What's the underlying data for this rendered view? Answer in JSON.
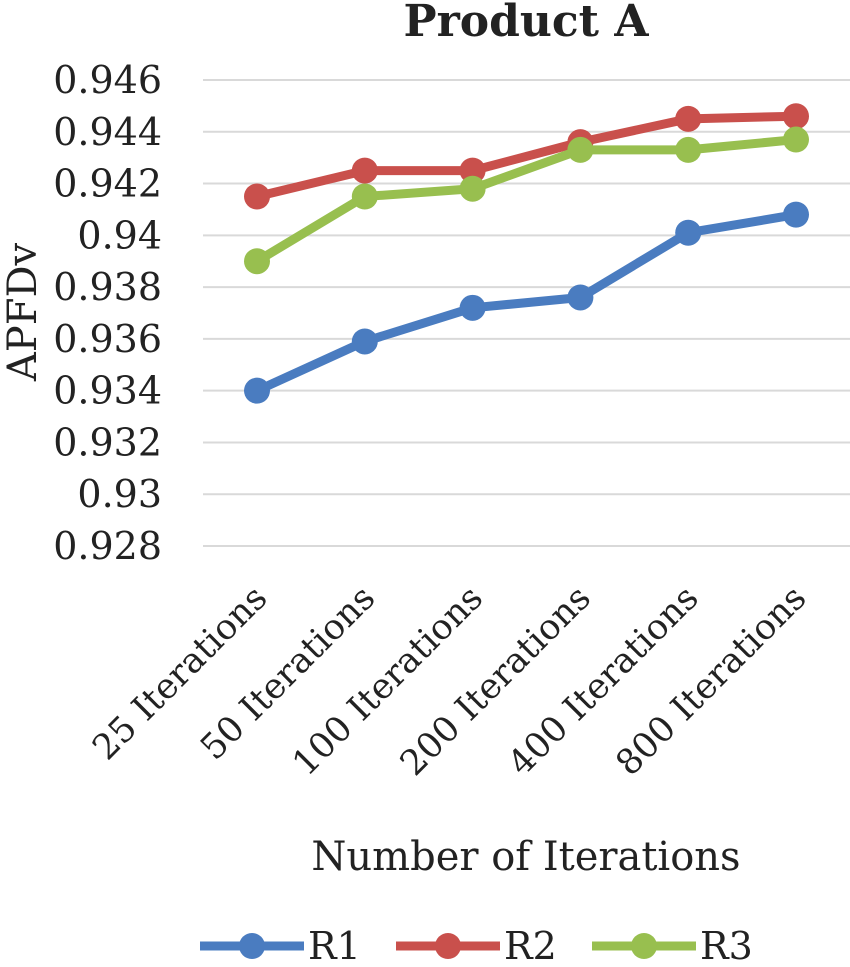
{
  "chart_data": {
    "type": "line",
    "title": "Product A",
    "xlabel": "Number of Iterations",
    "ylabel": "APFDv",
    "categories": [
      "25  Iterations",
      "50  Iterations",
      "100 Iterations",
      "200 Iterations",
      "400 Iterations",
      "800 Iterations"
    ],
    "ylim": [
      0.928,
      0.946
    ],
    "yticks": [
      0.928,
      0.93,
      0.932,
      0.934,
      0.936,
      0.938,
      0.94,
      0.942,
      0.944,
      0.946
    ],
    "ytick_labels": [
      "0.928",
      "0.93",
      "0.932",
      "0.934",
      "0.936",
      "0.938",
      "0.94",
      "0.942",
      "0.944",
      "0.946"
    ],
    "grid": true,
    "legend_position": "bottom",
    "series": [
      {
        "name": "R1",
        "color": "#4a7cc0",
        "values": [
          0.934,
          0.9359,
          0.9372,
          0.9376,
          0.9401,
          0.9408
        ]
      },
      {
        "name": "R2",
        "color": "#c9504c",
        "values": [
          0.9415,
          0.9425,
          0.9425,
          0.9436,
          0.9445,
          0.9446
        ]
      },
      {
        "name": "R3",
        "color": "#98bf4f",
        "values": [
          0.939,
          0.9415,
          0.9418,
          0.9433,
          0.9433,
          0.9437
        ]
      }
    ]
  }
}
